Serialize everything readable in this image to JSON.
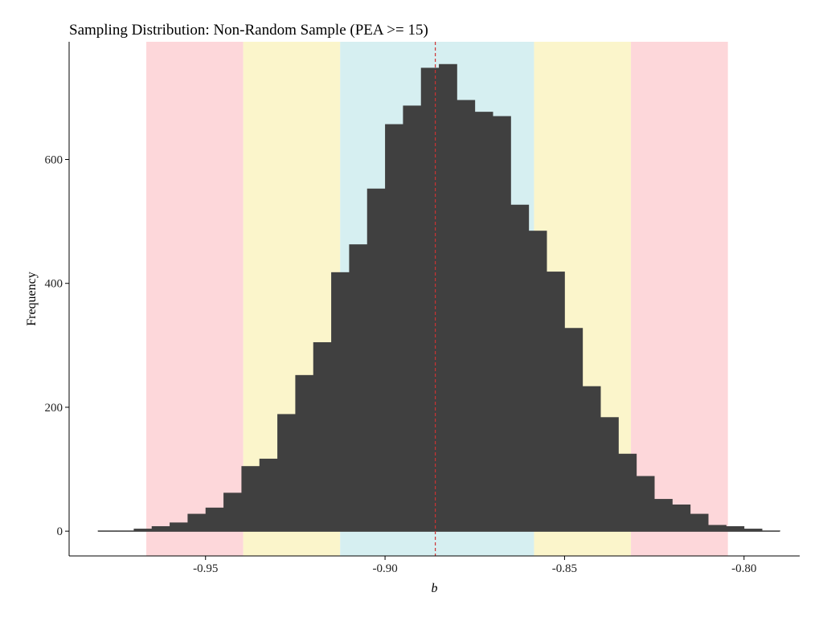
{
  "chart_data": {
    "type": "bar",
    "title": "Sampling Distribution: Non-Random Sample (PEA >= 15)",
    "xlabel": "b",
    "ylabel": "Frequency",
    "xlim": [
      -0.988,
      -0.7845
    ],
    "ylim": [
      -40,
      790
    ],
    "x_ticks": [
      -0.95,
      -0.9,
      -0.85,
      -0.8
    ],
    "x_tick_labels": [
      "-0.95",
      "-0.90",
      "-0.85",
      "-0.80"
    ],
    "y_ticks": [
      0,
      200,
      400,
      600
    ],
    "y_tick_labels": [
      "0",
      "200",
      "400",
      "600"
    ],
    "grid": false,
    "legend": "none",
    "bar_color": "#404040",
    "reference_line": {
      "x": -0.886,
      "color": "#cc3333",
      "style": "dashed"
    },
    "bands": [
      {
        "from": -0.9665,
        "to": -0.9395,
        "color": "#fdd7da"
      },
      {
        "from": -0.9395,
        "to": -0.9125,
        "color": "#fbf5cb"
      },
      {
        "from": -0.9125,
        "to": -0.8585,
        "color": "#d6eff1"
      },
      {
        "from": -0.8585,
        "to": -0.8315,
        "color": "#fbf5cb"
      },
      {
        "from": -0.8315,
        "to": -0.8045,
        "color": "#fdd7da"
      }
    ],
    "bin_width": 0.005,
    "bins": [
      {
        "x0": -0.98,
        "x1": -0.975,
        "count": 1
      },
      {
        "x0": -0.975,
        "x1": -0.97,
        "count": 1
      },
      {
        "x0": -0.97,
        "x1": -0.965,
        "count": 4
      },
      {
        "x0": -0.965,
        "x1": -0.96,
        "count": 8
      },
      {
        "x0": -0.96,
        "x1": -0.955,
        "count": 14
      },
      {
        "x0": -0.955,
        "x1": -0.95,
        "count": 28
      },
      {
        "x0": -0.95,
        "x1": -0.945,
        "count": 38
      },
      {
        "x0": -0.945,
        "x1": -0.94,
        "count": 62
      },
      {
        "x0": -0.94,
        "x1": -0.935,
        "count": 105
      },
      {
        "x0": -0.935,
        "x1": -0.93,
        "count": 117
      },
      {
        "x0": -0.93,
        "x1": -0.925,
        "count": 189
      },
      {
        "x0": -0.925,
        "x1": -0.92,
        "count": 252
      },
      {
        "x0": -0.92,
        "x1": -0.915,
        "count": 305
      },
      {
        "x0": -0.915,
        "x1": -0.91,
        "count": 418
      },
      {
        "x0": -0.91,
        "x1": -0.905,
        "count": 463
      },
      {
        "x0": -0.905,
        "x1": -0.9,
        "count": 553
      },
      {
        "x0": -0.9,
        "x1": -0.895,
        "count": 657
      },
      {
        "x0": -0.895,
        "x1": -0.89,
        "count": 687
      },
      {
        "x0": -0.89,
        "x1": -0.885,
        "count": 748
      },
      {
        "x0": -0.885,
        "x1": -0.88,
        "count": 754
      },
      {
        "x0": -0.88,
        "x1": -0.875,
        "count": 696
      },
      {
        "x0": -0.875,
        "x1": -0.87,
        "count": 677
      },
      {
        "x0": -0.87,
        "x1": -0.865,
        "count": 670
      },
      {
        "x0": -0.865,
        "x1": -0.86,
        "count": 527
      },
      {
        "x0": -0.86,
        "x1": -0.855,
        "count": 485
      },
      {
        "x0": -0.855,
        "x1": -0.85,
        "count": 419
      },
      {
        "x0": -0.85,
        "x1": -0.845,
        "count": 328
      },
      {
        "x0": -0.845,
        "x1": -0.84,
        "count": 234
      },
      {
        "x0": -0.84,
        "x1": -0.835,
        "count": 184
      },
      {
        "x0": -0.835,
        "x1": -0.83,
        "count": 125
      },
      {
        "x0": -0.83,
        "x1": -0.825,
        "count": 89
      },
      {
        "x0": -0.825,
        "x1": -0.82,
        "count": 52
      },
      {
        "x0": -0.82,
        "x1": -0.815,
        "count": 43
      },
      {
        "x0": -0.815,
        "x1": -0.81,
        "count": 28
      },
      {
        "x0": -0.81,
        "x1": -0.805,
        "count": 10
      },
      {
        "x0": -0.805,
        "x1": -0.8,
        "count": 8
      },
      {
        "x0": -0.8,
        "x1": -0.795,
        "count": 4
      },
      {
        "x0": -0.795,
        "x1": -0.79,
        "count": 1
      }
    ]
  }
}
